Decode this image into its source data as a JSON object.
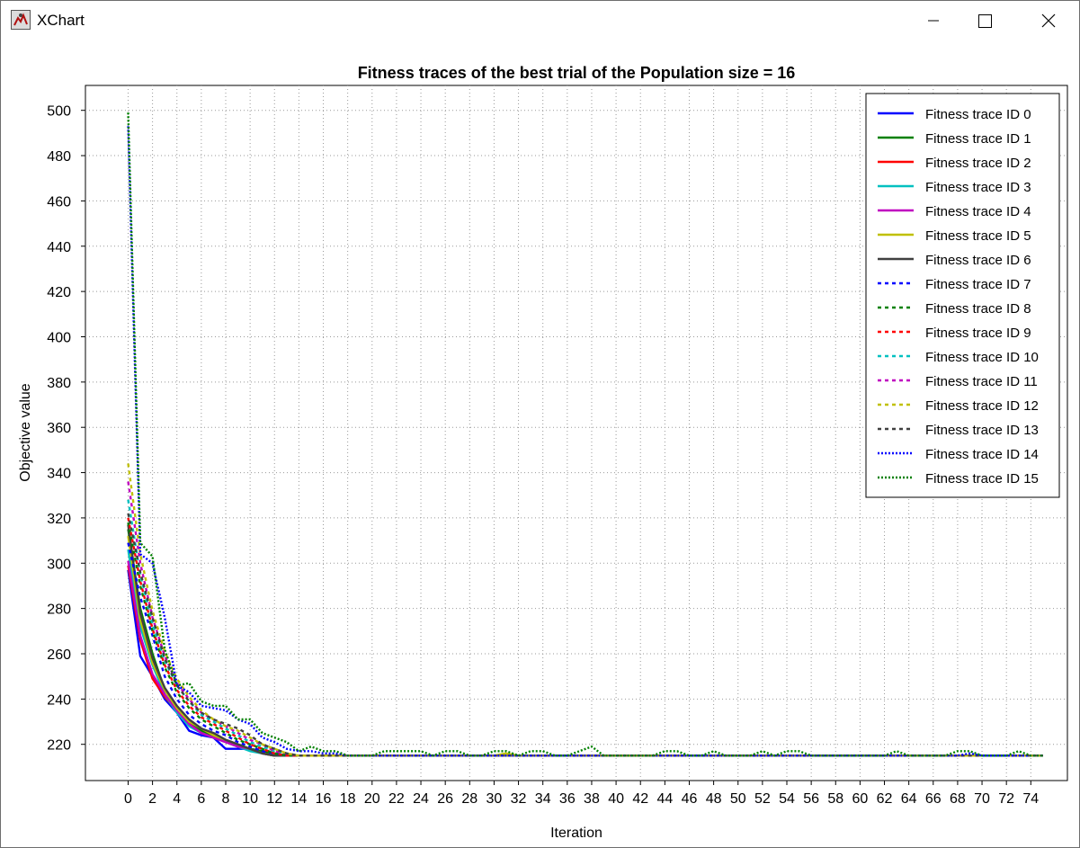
{
  "window": {
    "title": "XChart",
    "controls": {
      "minimize": "minimize-icon",
      "maximize": "maximize-icon",
      "close": "close-icon"
    }
  },
  "chart_data": {
    "type": "line",
    "title": "Fitness traces of the best trial of the Population size = 16",
    "xlabel": "Iteration",
    "ylabel": "Objective value",
    "xlim": [
      -3.5,
      77
    ],
    "ylim": [
      204,
      511
    ],
    "x_ticks": [
      0,
      2,
      4,
      6,
      8,
      10,
      12,
      14,
      16,
      18,
      20,
      22,
      24,
      26,
      28,
      30,
      32,
      34,
      36,
      38,
      40,
      42,
      44,
      46,
      48,
      50,
      52,
      54,
      56,
      58,
      60,
      62,
      64,
      66,
      68,
      70,
      72,
      74
    ],
    "y_ticks": [
      220,
      240,
      260,
      280,
      300,
      320,
      340,
      360,
      380,
      400,
      420,
      440,
      460,
      480,
      500
    ],
    "grid": true,
    "legend_position": "top-right",
    "series": [
      {
        "name": "Fitness trace ID 0",
        "color": "#0000ff",
        "style": "solid",
        "x": [
          0,
          1,
          2,
          3,
          4,
          5,
          6,
          7,
          8,
          9,
          10,
          11,
          12,
          13,
          14,
          15,
          16,
          17,
          18,
          75
        ],
        "y": [
          297,
          259,
          250,
          240,
          234,
          226,
          224,
          223,
          218,
          218,
          218,
          217,
          216,
          215,
          215,
          215,
          215,
          215,
          215,
          215
        ]
      },
      {
        "name": "Fitness trace ID 1",
        "color": "#008000",
        "style": "solid",
        "x": [
          0,
          1,
          2,
          3,
          4,
          5,
          6,
          7,
          8,
          9,
          10,
          11,
          12,
          13,
          14,
          15,
          75
        ],
        "y": [
          315,
          280,
          260,
          244,
          236,
          230,
          226,
          224,
          222,
          220,
          218,
          217,
          215,
          215,
          215,
          215,
          215
        ]
      },
      {
        "name": "Fitness trace ID 2",
        "color": "#ff0000",
        "style": "solid",
        "x": [
          0,
          1,
          2,
          3,
          4,
          5,
          6,
          7,
          8,
          9,
          10,
          11,
          12,
          13,
          14,
          15,
          75
        ],
        "y": [
          299,
          266,
          249,
          241,
          235,
          229,
          225,
          223,
          221,
          219,
          218,
          216,
          215,
          215,
          215,
          215,
          215
        ]
      },
      {
        "name": "Fitness trace ID 3",
        "color": "#00c0c0",
        "style": "solid",
        "x": [
          0,
          1,
          2,
          3,
          4,
          5,
          6,
          7,
          8,
          9,
          10,
          11,
          12,
          13,
          14,
          15,
          75
        ],
        "y": [
          306,
          272,
          255,
          242,
          234,
          228,
          225,
          223,
          221,
          219,
          217,
          216,
          215,
          215,
          215,
          215,
          215
        ]
      },
      {
        "name": "Fitness trace ID 4",
        "color": "#c000c0",
        "style": "solid",
        "x": [
          0,
          1,
          2,
          3,
          4,
          5,
          6,
          7,
          8,
          9,
          10,
          11,
          12,
          13,
          14,
          15,
          75
        ],
        "y": [
          301,
          268,
          251,
          242,
          235,
          229,
          225,
          223,
          221,
          219,
          218,
          216,
          215,
          215,
          215,
          215,
          215
        ]
      },
      {
        "name": "Fitness trace ID 5",
        "color": "#c0c000",
        "style": "solid",
        "x": [
          0,
          1,
          2,
          3,
          4,
          5,
          6,
          7,
          8,
          9,
          10,
          11,
          12,
          13,
          14,
          15,
          30,
          31,
          32,
          75
        ],
        "y": [
          312,
          275,
          256,
          244,
          236,
          230,
          227,
          224,
          222,
          220,
          218,
          216,
          215,
          215,
          215,
          215,
          215,
          216,
          215,
          215
        ]
      },
      {
        "name": "Fitness trace ID 6",
        "color": "#404040",
        "style": "solid",
        "x": [
          0,
          1,
          2,
          3,
          4,
          5,
          6,
          7,
          8,
          9,
          10,
          11,
          12,
          13,
          14,
          15,
          75
        ],
        "y": [
          317,
          278,
          258,
          245,
          237,
          231,
          227,
          225,
          222,
          220,
          218,
          216,
          215,
          215,
          215,
          215,
          215
        ]
      },
      {
        "name": "Fitness trace ID 7",
        "color": "#0000ff",
        "style": "dotted",
        "x": [
          0,
          1,
          2,
          3,
          4,
          5,
          6,
          7,
          8,
          9,
          10,
          11,
          12,
          13,
          14,
          15,
          16,
          75
        ],
        "y": [
          309,
          285,
          268,
          250,
          240,
          233,
          229,
          226,
          224,
          221,
          219,
          217,
          216,
          215,
          215,
          215,
          215,
          215
        ]
      },
      {
        "name": "Fitness trace ID 8",
        "color": "#008000",
        "style": "dotted",
        "x": [
          0,
          1,
          2,
          3,
          4,
          5,
          6,
          7,
          8,
          9,
          10,
          11,
          12,
          13,
          14,
          15,
          16,
          75
        ],
        "y": [
          318,
          290,
          270,
          254,
          243,
          236,
          231,
          228,
          225,
          222,
          220,
          218,
          216,
          215,
          215,
          215,
          215,
          215
        ]
      },
      {
        "name": "Fitness trace ID 9",
        "color": "#ff0000",
        "style": "dotted",
        "x": [
          0,
          1,
          2,
          3,
          4,
          5,
          6,
          7,
          8,
          9,
          10,
          11,
          12,
          13,
          14,
          15,
          16,
          75
        ],
        "y": [
          320,
          292,
          271,
          255,
          244,
          237,
          232,
          229,
          226,
          223,
          220,
          218,
          216,
          215,
          215,
          215,
          215,
          215
        ]
      },
      {
        "name": "Fitness trace ID 10",
        "color": "#00c0c0",
        "style": "dotted",
        "x": [
          0,
          1,
          2,
          3,
          4,
          5,
          6,
          7,
          8,
          9,
          10,
          11,
          12,
          13,
          14,
          15,
          16,
          75
        ],
        "y": [
          328,
          295,
          273,
          257,
          246,
          239,
          233,
          230,
          227,
          224,
          221,
          219,
          217,
          216,
          215,
          215,
          215,
          215
        ]
      },
      {
        "name": "Fitness trace ID 11",
        "color": "#c000c0",
        "style": "dotted",
        "x": [
          0,
          1,
          2,
          3,
          4,
          5,
          6,
          7,
          8,
          9,
          10,
          11,
          12,
          13,
          14,
          15,
          16,
          75
        ],
        "y": [
          336,
          300,
          276,
          259,
          247,
          240,
          234,
          231,
          228,
          225,
          222,
          220,
          217,
          216,
          215,
          215,
          215,
          215
        ]
      },
      {
        "name": "Fitness trace ID 12",
        "color": "#c0c000",
        "style": "dotted",
        "x": [
          0,
          1,
          2,
          3,
          4,
          5,
          6,
          7,
          8,
          9,
          10,
          11,
          12,
          13,
          14,
          15,
          16,
          75
        ],
        "y": [
          344,
          304,
          279,
          261,
          249,
          241,
          235,
          231,
          228,
          226,
          223,
          220,
          218,
          216,
          215,
          215,
          215,
          215
        ]
      },
      {
        "name": "Fitness trace ID 13",
        "color": "#404040",
        "style": "dotted",
        "x": [
          0,
          1,
          2,
          3,
          4,
          5,
          6,
          7,
          8,
          9,
          10,
          11,
          12,
          13,
          14,
          15,
          16,
          75
        ],
        "y": [
          322,
          296,
          276,
          258,
          246,
          239,
          234,
          231,
          229,
          227,
          224,
          220,
          218,
          216,
          215,
          215,
          215,
          215
        ]
      },
      {
        "name": "Fitness trace ID 14",
        "color": "#0000ff",
        "style": "dashdot",
        "x": [
          0,
          1,
          2,
          3,
          4,
          5,
          6,
          7,
          8,
          9,
          10,
          11,
          12,
          13,
          14,
          15,
          16,
          17,
          18,
          19,
          20,
          21,
          22,
          23,
          24,
          25,
          26,
          27,
          28,
          29,
          30,
          31,
          32,
          33,
          34,
          35,
          36,
          37,
          38,
          39,
          40,
          41,
          42,
          43,
          44,
          45,
          46,
          47,
          48,
          49,
          50,
          51,
          52,
          53,
          54,
          55,
          56,
          57,
          58,
          59,
          60,
          61,
          62,
          63,
          64,
          65,
          66,
          67,
          68,
          69,
          70,
          71,
          72,
          73,
          74,
          75
        ],
        "y": [
          493,
          304,
          300,
          276,
          246,
          243,
          237,
          236,
          235,
          231,
          229,
          223,
          221,
          218,
          217,
          217,
          216,
          216,
          215,
          215,
          215,
          215,
          215,
          215,
          215,
          215,
          215,
          215,
          215,
          215,
          215,
          215,
          215,
          215,
          215,
          215,
          215,
          215,
          215,
          215,
          215,
          215,
          215,
          215,
          215,
          215,
          215,
          215,
          215,
          215,
          215,
          215,
          215,
          215,
          215,
          215,
          215,
          215,
          215,
          215,
          215,
          215,
          215,
          215,
          215,
          215,
          215,
          215,
          215,
          216,
          215,
          215,
          215,
          215,
          215,
          215
        ]
      },
      {
        "name": "Fitness trace ID 15",
        "color": "#008000",
        "style": "dashdot",
        "x": [
          0,
          1,
          2,
          3,
          4,
          5,
          6,
          7,
          8,
          9,
          10,
          11,
          12,
          13,
          14,
          15,
          16,
          17,
          18,
          19,
          20,
          21,
          22,
          23,
          24,
          25,
          26,
          27,
          28,
          29,
          30,
          31,
          32,
          33,
          34,
          35,
          36,
          37,
          38,
          39,
          40,
          41,
          42,
          43,
          44,
          45,
          46,
          47,
          48,
          49,
          50,
          51,
          52,
          53,
          54,
          55,
          56,
          57,
          58,
          59,
          60,
          61,
          62,
          63,
          64,
          65,
          66,
          67,
          68,
          69,
          70,
          71,
          72,
          73,
          74,
          75
        ],
        "y": [
          499,
          309,
          303,
          262,
          246,
          247,
          239,
          237,
          237,
          231,
          231,
          225,
          223,
          221,
          217,
          219,
          217,
          217,
          215,
          215,
          215,
          217,
          217,
          217,
          217,
          215,
          217,
          217,
          215,
          215,
          217,
          217,
          215,
          217,
          217,
          215,
          215,
          217,
          219,
          215,
          215,
          215,
          215,
          215,
          217,
          217,
          215,
          215,
          217,
          215,
          215,
          215,
          217,
          215,
          217,
          217,
          215,
          215,
          215,
          215,
          215,
          215,
          215,
          217,
          215,
          215,
          215,
          215,
          217,
          217,
          215,
          215,
          215,
          217,
          215,
          215
        ]
      }
    ]
  }
}
